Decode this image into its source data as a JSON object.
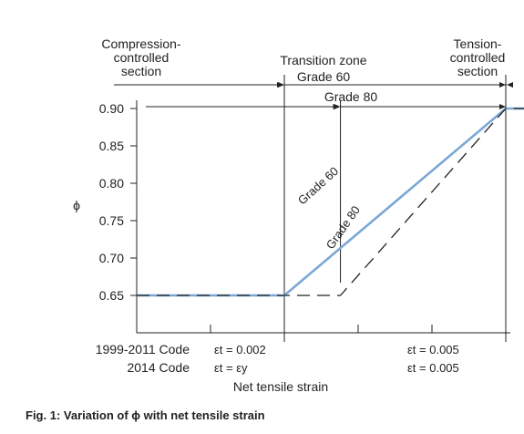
{
  "chart_data": {
    "type": "line",
    "ylabel": "ϕ",
    "xlabel": "Net tensile strain",
    "y_ticks": [
      "0.90",
      "0.85",
      "0.80",
      "0.75",
      "0.70",
      "0.65"
    ],
    "ylim": [
      0.6,
      0.92
    ],
    "xlim": [
      0.0,
      0.006
    ],
    "grid": false,
    "series": [
      {
        "name": "Grade 60",
        "color": "#7ba7d4",
        "style": "solid",
        "points": [
          [
            0.0,
            0.65
          ],
          [
            0.002,
            0.65
          ],
          [
            0.005,
            0.9
          ],
          [
            0.006,
            0.9
          ]
        ]
      },
      {
        "name": "Grade 80",
        "color": "#222222",
        "style": "dashed",
        "points": [
          [
            0.0,
            0.65
          ],
          [
            0.00276,
            0.65
          ],
          [
            0.005,
            0.9
          ],
          [
            0.006,
            0.9
          ]
        ]
      }
    ],
    "zones": {
      "compression": "Compression-\ncontrolled\nsection",
      "transition": "Transition zone",
      "tension": "Tension-\ncontrolled\nsection",
      "grade60": "Grade 60",
      "grade80": "Grade 80"
    },
    "line_labels": {
      "grade60": "Grade 60",
      "grade80": "Grade 80"
    },
    "code_rows": {
      "row1_label": "1999-2011 Code",
      "row2_label": "2014 Code",
      "left_row1": "εt = 0.002",
      "left_row2": "εt = εy",
      "right_row1": "εt = 0.005",
      "right_row2": "εt = 0.005"
    }
  },
  "caption": "Fig. 1: Variation of ϕ with net tensile strain"
}
